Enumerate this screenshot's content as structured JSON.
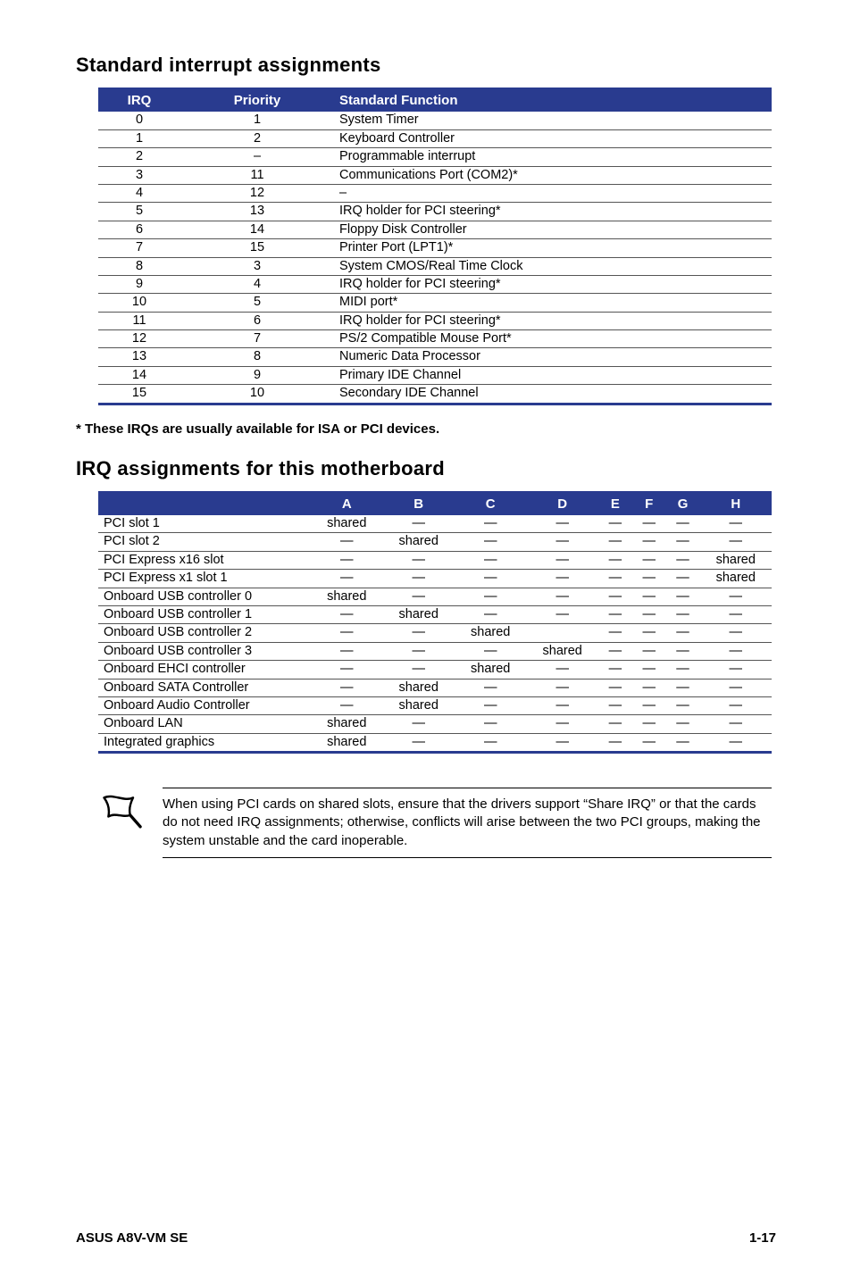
{
  "section1_title": "Standard interrupt assignments",
  "table1": {
    "headers": [
      "IRQ",
      "Priority",
      "Standard Function"
    ],
    "rows": [
      [
        "0",
        "1",
        "System Timer"
      ],
      [
        "1",
        "2",
        "Keyboard Controller"
      ],
      [
        "2",
        "–",
        "Programmable interrupt"
      ],
      [
        "3",
        "11",
        "Communications Port (COM2)*"
      ],
      [
        "4",
        "12",
        "–"
      ],
      [
        "5",
        "13",
        "IRQ holder for PCI steering*"
      ],
      [
        "6",
        "14",
        "Floppy Disk Controller"
      ],
      [
        "7",
        "15",
        "Printer Port (LPT1)*"
      ],
      [
        "8",
        "3",
        "System CMOS/Real Time Clock"
      ],
      [
        "9",
        "4",
        "IRQ holder for PCI steering*"
      ],
      [
        "10",
        "5",
        "MIDI port*"
      ],
      [
        "11",
        "6",
        "IRQ holder for PCI steering*"
      ],
      [
        "12",
        "7",
        "PS/2 Compatible Mouse Port*"
      ],
      [
        "13",
        "8",
        "Numeric Data Processor"
      ],
      [
        "14",
        "9",
        "Primary IDE Channel"
      ],
      [
        "15",
        "10",
        "Secondary IDE Channel"
      ]
    ]
  },
  "footnote": "* These IRQs are usually available for ISA or PCI devices.",
  "section2_title": "IRQ assignments for this motherboard",
  "table2": {
    "headers": [
      "",
      "A",
      "B",
      "C",
      "D",
      "E",
      "F",
      "G",
      "H"
    ],
    "rows": [
      [
        "PCI slot 1",
        "shared",
        "—",
        "—",
        "—",
        "—",
        "—",
        "—",
        "—"
      ],
      [
        "PCI slot 2",
        "—",
        "shared",
        "—",
        "—",
        "—",
        "—",
        "—",
        "—"
      ],
      [
        "PCI Express x16 slot",
        "—",
        "—",
        "—",
        "—",
        "—",
        "—",
        "—",
        "shared"
      ],
      [
        "PCI Express x1 slot 1",
        "—",
        "—",
        "—",
        "—",
        "—",
        "—",
        "—",
        "shared"
      ],
      [
        "Onboard USB controller 0",
        "shared",
        "—",
        "—",
        "—",
        "—",
        "—",
        "—",
        "—"
      ],
      [
        "Onboard USB controller 1",
        "—",
        "shared",
        "—",
        "—",
        "—",
        "—",
        "—",
        "—"
      ],
      [
        "Onboard USB controller 2",
        "—",
        "—",
        "shared",
        "",
        "—",
        "—",
        "—",
        "—"
      ],
      [
        "Onboard USB controller 3",
        "—",
        "—",
        "—",
        "shared",
        "—",
        "—",
        "—",
        "—"
      ],
      [
        "Onboard EHCI controller",
        "—",
        "—",
        "shared",
        "—",
        "—",
        "—",
        "—",
        "—"
      ],
      [
        "Onboard SATA Controller",
        "—",
        "shared",
        "—",
        "—",
        "—",
        "—",
        "—",
        "—"
      ],
      [
        "Onboard Audio Controller",
        "—",
        "shared",
        "—",
        "—",
        "—",
        "—",
        "—",
        "—"
      ],
      [
        "Onboard LAN",
        "shared",
        "—",
        "—",
        "—",
        "—",
        "—",
        "—",
        "—"
      ],
      [
        "Integrated graphics",
        "shared",
        "—",
        "—",
        "—",
        "—",
        "—",
        "—",
        "—"
      ]
    ]
  },
  "callout": "When using PCI cards on shared slots, ensure that the drivers support “Share IRQ” or that the cards do not need IRQ assignments; otherwise, conflicts will arise between the two PCI groups, making the system unstable and the card inoperable.",
  "footer_left": "ASUS A8V-VM SE",
  "footer_right": "1-17",
  "colors": {
    "header_bg": "#293b8f",
    "header_text": "#ffffff",
    "border_heavy": "#293b8f",
    "row_border": "#555555"
  },
  "typography": {
    "section_heading_pt": 22,
    "body_pt": 14.5,
    "footnote_pt": 15,
    "callout_pt": 15,
    "footer_pt": 15
  }
}
